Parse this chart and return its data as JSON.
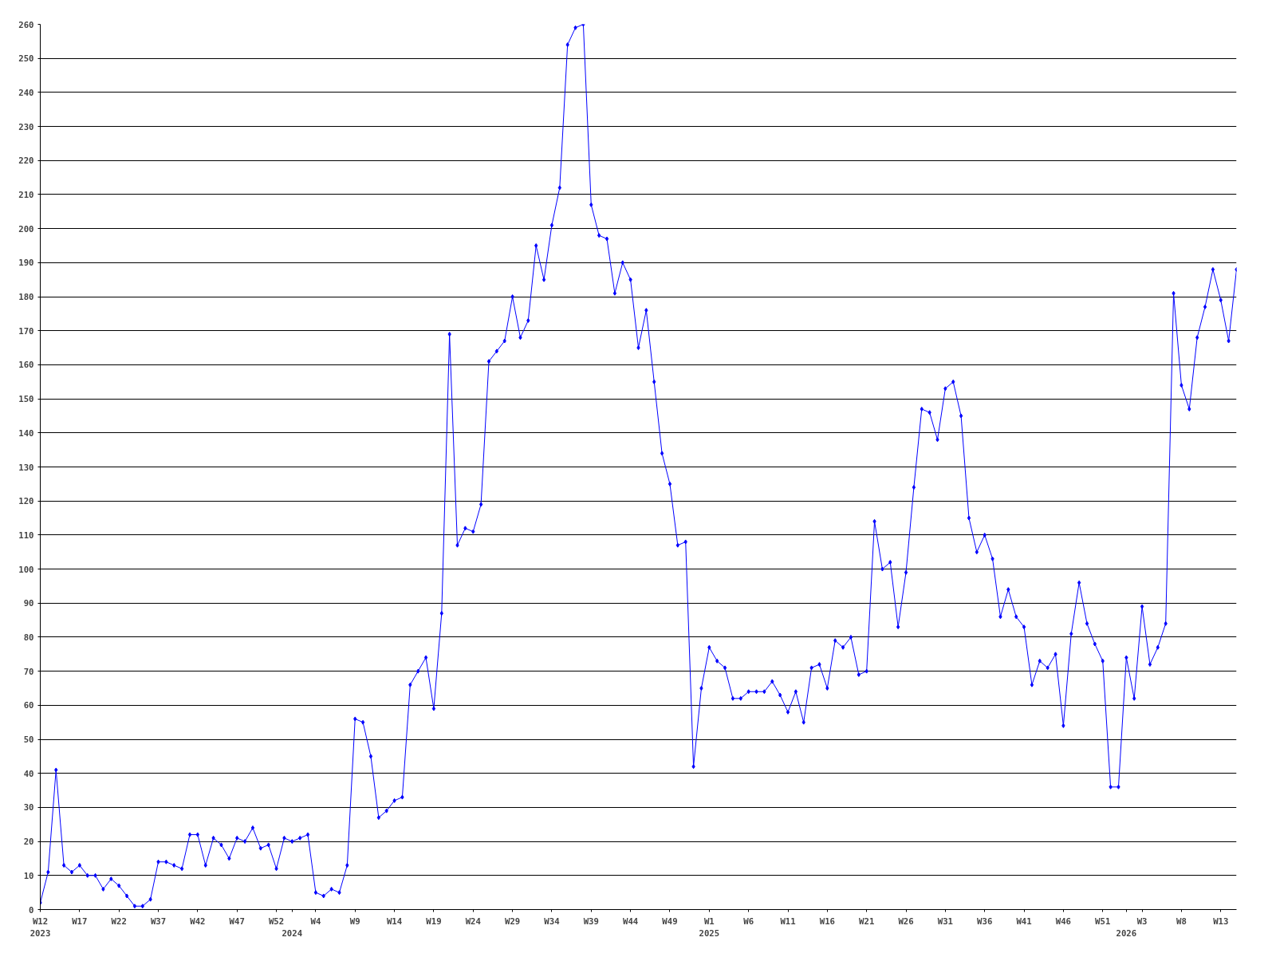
{
  "chart_data": {
    "type": "line",
    "categories": [
      "W12\n2023",
      null,
      null,
      null,
      null,
      "W17",
      null,
      null,
      null,
      null,
      "W22",
      null,
      null,
      null,
      null,
      "W37",
      null,
      null,
      null,
      null,
      "W42",
      null,
      null,
      null,
      null,
      "W47",
      null,
      null,
      null,
      null,
      "W52",
      null,
      "\n2024",
      null,
      null,
      "W4",
      null,
      null,
      null,
      null,
      "W9",
      null,
      null,
      null,
      null,
      "W14",
      null,
      null,
      null,
      null,
      "W19",
      null,
      null,
      null,
      null,
      "W24",
      null,
      null,
      null,
      null,
      "W29",
      null,
      null,
      null,
      null,
      "W34",
      null,
      null,
      null,
      null,
      "W39",
      null,
      null,
      null,
      null,
      "W44",
      null,
      null,
      null,
      null,
      "W49",
      null,
      null,
      null,
      null,
      "W1\n2025",
      null,
      null,
      null,
      null,
      "W6",
      null,
      null,
      null,
      null,
      "W11",
      null,
      null,
      null,
      null,
      "W16",
      null,
      null,
      null,
      null,
      "W21",
      null,
      null,
      null,
      null,
      "W26",
      null,
      null,
      null,
      null,
      "W31",
      null,
      null,
      null,
      null,
      "W36",
      null,
      null,
      null,
      null,
      "W41",
      null,
      null,
      null,
      null,
      "W46",
      null,
      null,
      null,
      null,
      "W51",
      null,
      null,
      "\n2026",
      null,
      "W3",
      null,
      null,
      null,
      null,
      "W8",
      null,
      null,
      null,
      null,
      "W13",
      null,
      null
    ],
    "series": [
      {
        "color": "#0000ff",
        "values": [
          2,
          11,
          41,
          13,
          11,
          13,
          10,
          10,
          6,
          9,
          7,
          4,
          1,
          1,
          3,
          14,
          14,
          13,
          12,
          22,
          22,
          13,
          21,
          19,
          15,
          21,
          20,
          24,
          18,
          19,
          12,
          21,
          20,
          21,
          22,
          5,
          4,
          6,
          5,
          13,
          56,
          55,
          45,
          27,
          29,
          32,
          33,
          66,
          70,
          74,
          59,
          87,
          169,
          107,
          112,
          111,
          119,
          161,
          164,
          167,
          180,
          168,
          173,
          195,
          185,
          201,
          212,
          254,
          259,
          260,
          207,
          198,
          197,
          181,
          190,
          185,
          165,
          176,
          155,
          134,
          125,
          107,
          108,
          42,
          65,
          77,
          73,
          71,
          62,
          62,
          64,
          64,
          64,
          67,
          63,
          58,
          64,
          55,
          71,
          72,
          65,
          79,
          77,
          80,
          69,
          70,
          114,
          100,
          102,
          83,
          99,
          124,
          147,
          146,
          138,
          153,
          155,
          145,
          115,
          105,
          110,
          103,
          86,
          94,
          86,
          83,
          66,
          73,
          71,
          75,
          54,
          81,
          96,
          84,
          78,
          73,
          36,
          36,
          74,
          62,
          89,
          72,
          77,
          84,
          181,
          154,
          147,
          168,
          177,
          188,
          179,
          167,
          188
        ]
      }
    ],
    "ylim": [
      0,
      260
    ],
    "yticks": [
      0,
      10,
      20,
      30,
      40,
      50,
      60,
      70,
      80,
      90,
      100,
      110,
      120,
      130,
      140,
      150,
      160,
      170,
      180,
      190,
      200,
      210,
      220,
      230,
      240,
      250,
      260
    ],
    "grid": "y",
    "marker": "diamond",
    "line_style": "solid"
  }
}
